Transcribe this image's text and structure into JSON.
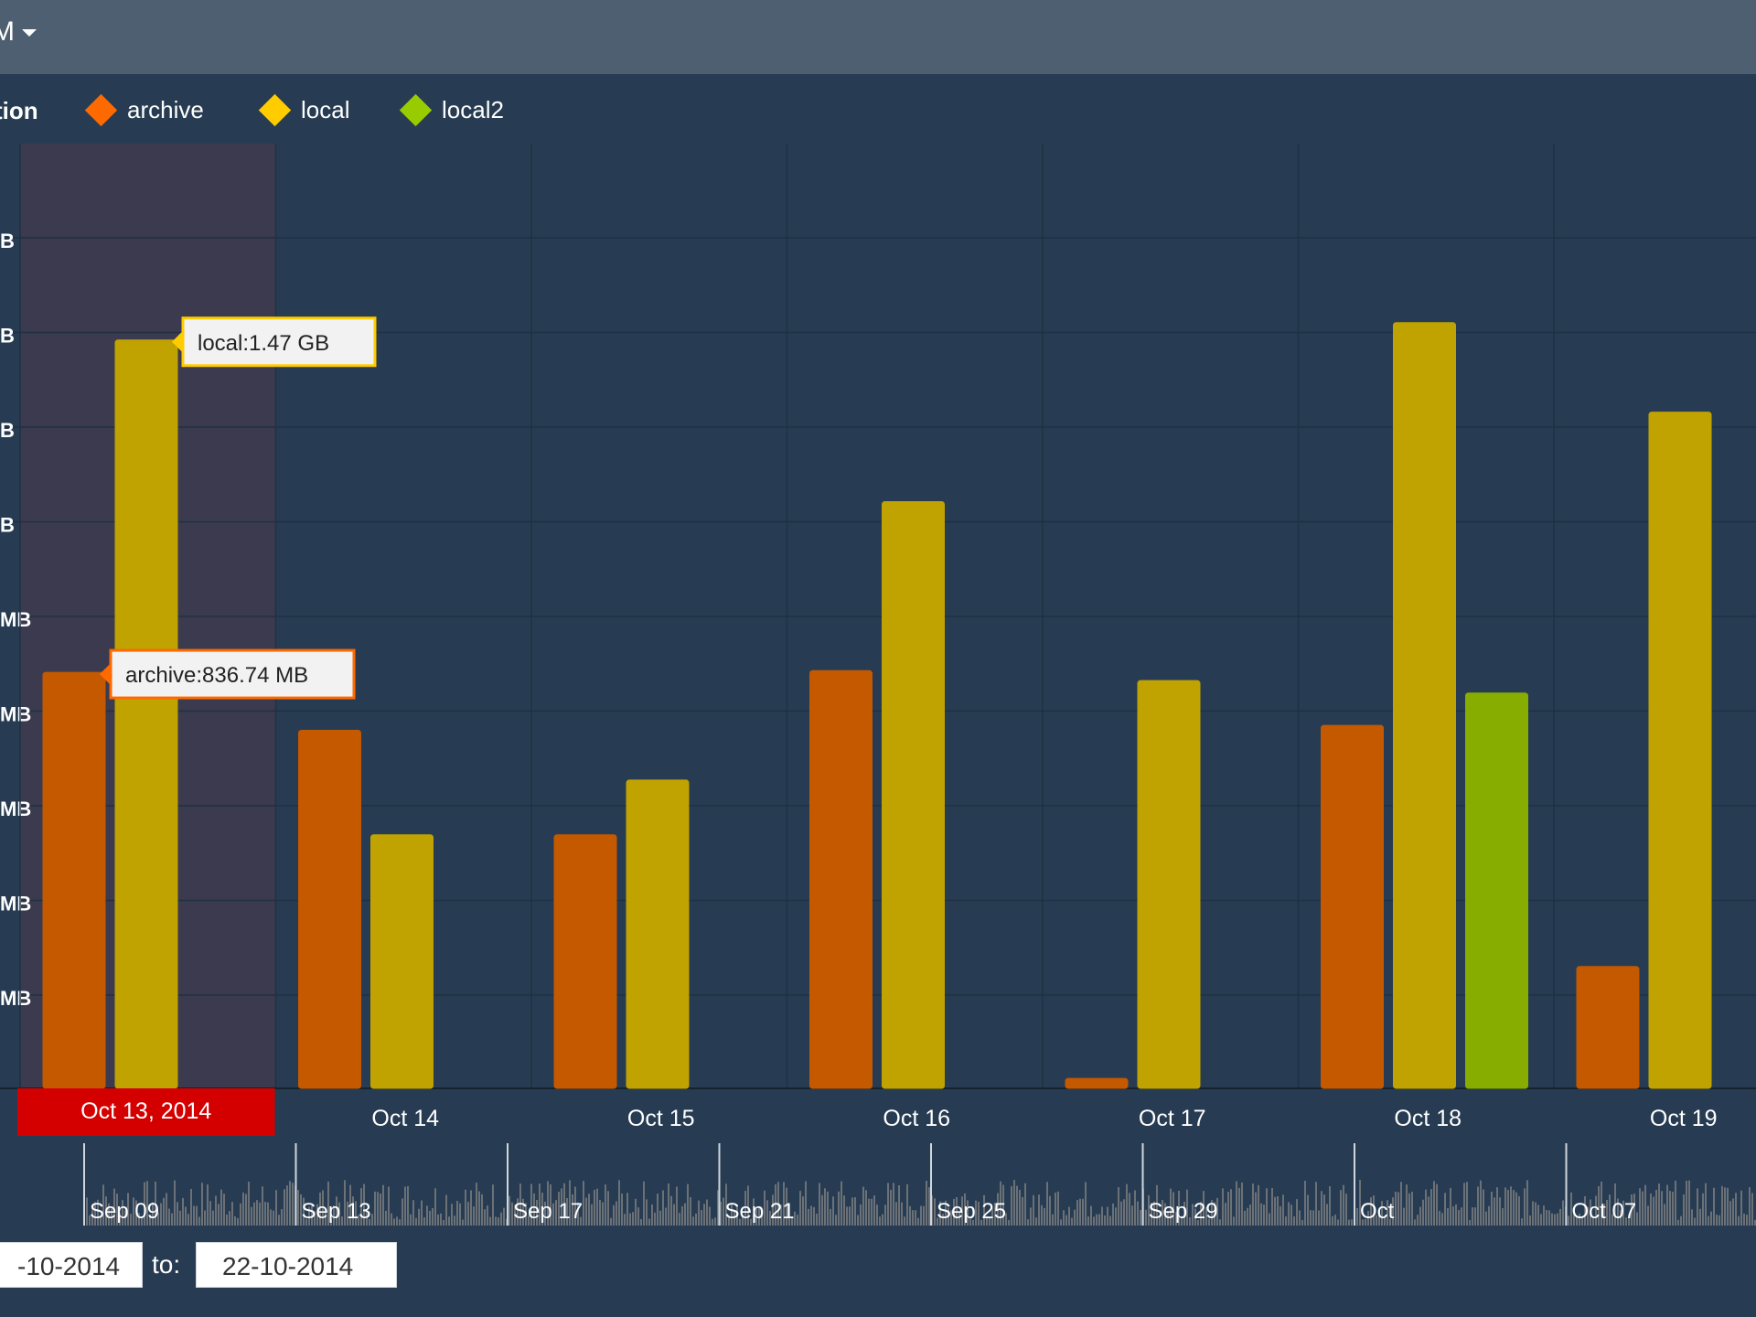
{
  "header": {
    "menu_label": "M"
  },
  "legend": {
    "title": "tion",
    "items": [
      {
        "name": "archive",
        "color": "#ff6a00"
      },
      {
        "name": "local",
        "color": "#ffcc00"
      },
      {
        "name": "local2",
        "color": "#99cc00"
      }
    ]
  },
  "chart_data": {
    "type": "bar",
    "categories": [
      "Oct 13, 2014",
      "Oct 14",
      "Oct 15",
      "Oct 16",
      "Oct 17",
      "Oct 18",
      "Oct 19"
    ],
    "selected_category": "Oct 13, 2014",
    "series": [
      {
        "name": "archive",
        "color": "#c45900",
        "values": [
          836.74,
          720,
          510,
          840,
          20,
          730,
          245
        ]
      },
      {
        "name": "local",
        "color": "#c0a300",
        "values": [
          1505,
          510,
          620,
          1180,
          820,
          1540,
          1360
        ]
      },
      {
        "name": "local2",
        "color": "#86ad00",
        "values": [
          null,
          null,
          null,
          null,
          null,
          795,
          null
        ]
      }
    ],
    "y_axis_labels": [
      "B",
      "B",
      "B",
      "B",
      "MB",
      "MB",
      "MB",
      "MB",
      "MB"
    ],
    "ylim": [
      0,
      1900
    ],
    "grid": true,
    "tooltips": [
      {
        "text": "local:1.47 GB",
        "series": "local",
        "category": "Oct 13, 2014",
        "color": "#ffcc00"
      },
      {
        "text": "archive:836.74 MB",
        "series": "archive",
        "category": "Oct 13, 2014",
        "color": "#ff6a00"
      }
    ],
    "navigator": {
      "labels": [
        "Sep 09",
        "Sep 13",
        "Sep 17",
        "Sep 21",
        "Sep 25",
        "Sep 29",
        "Oct",
        "Oct 07"
      ]
    }
  },
  "date_range": {
    "from": "-10-2014",
    "to_label": "to:",
    "to": "22-10-2014"
  }
}
